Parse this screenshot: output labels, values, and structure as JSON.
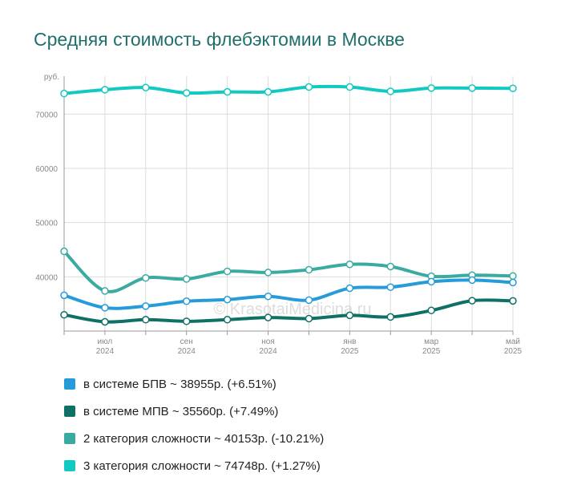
{
  "title": "Средняя стоимость флебэктомии в Москве",
  "watermark": "© KrasotaiMedicina.ru",
  "chart_data": {
    "type": "line",
    "ylabel": "руб.",
    "ylim": [
      30000,
      77000
    ],
    "yticks": [
      40000,
      50000,
      60000,
      70000
    ],
    "ytick_labels": [
      "40000",
      "50000",
      "60000",
      "70000"
    ],
    "x_tick_labels": [
      {
        "month": "июл",
        "year": "2024",
        "at": 1
      },
      {
        "month": "сен",
        "year": "2024",
        "at": 3
      },
      {
        "month": "ноя",
        "year": "2024",
        "at": 5
      },
      {
        "month": "янв",
        "year": "2025",
        "at": 7
      },
      {
        "month": "мар",
        "year": "2025",
        "at": 9
      },
      {
        "month": "май",
        "year": "2025",
        "at": 11
      }
    ],
    "grid": true,
    "legend_position": "bottom",
    "series": [
      {
        "name": "3 категория сложности",
        "color": "#12c9c1",
        "values": [
          73800,
          74500,
          74900,
          73900,
          74100,
          74100,
          75000,
          75000,
          74200,
          74800,
          74800,
          74748
        ]
      },
      {
        "name": "2 категория сложности",
        "color": "#3aaba0",
        "values": [
          44700,
          37400,
          39800,
          39600,
          41000,
          40800,
          41300,
          42300,
          41900,
          40100,
          40300,
          40153
        ]
      },
      {
        "name": "в системе БПВ",
        "color": "#269bd9",
        "values": [
          36600,
          34300,
          34600,
          35500,
          35800,
          36400,
          35700,
          37900,
          38100,
          39100,
          39400,
          38955
        ]
      },
      {
        "name": "в системе МПВ",
        "color": "#0f7066",
        "values": [
          33000,
          31700,
          32100,
          31800,
          32100,
          32500,
          32300,
          32900,
          32600,
          33800,
          35600,
          35560
        ]
      }
    ]
  },
  "legend": [
    {
      "label": "в системе БПВ ~ 38955р. (+6.51%)",
      "color": "#269bd9"
    },
    {
      "label": "в системе МПВ ~ 35560р. (+7.49%)",
      "color": "#0f7066"
    },
    {
      "label": "2 категория сложности ~ 40153р. (-10.21%)",
      "color": "#3aaba0"
    },
    {
      "label": "3 категория сложности ~ 74748р. (+1.27%)",
      "color": "#12c9c1"
    }
  ]
}
